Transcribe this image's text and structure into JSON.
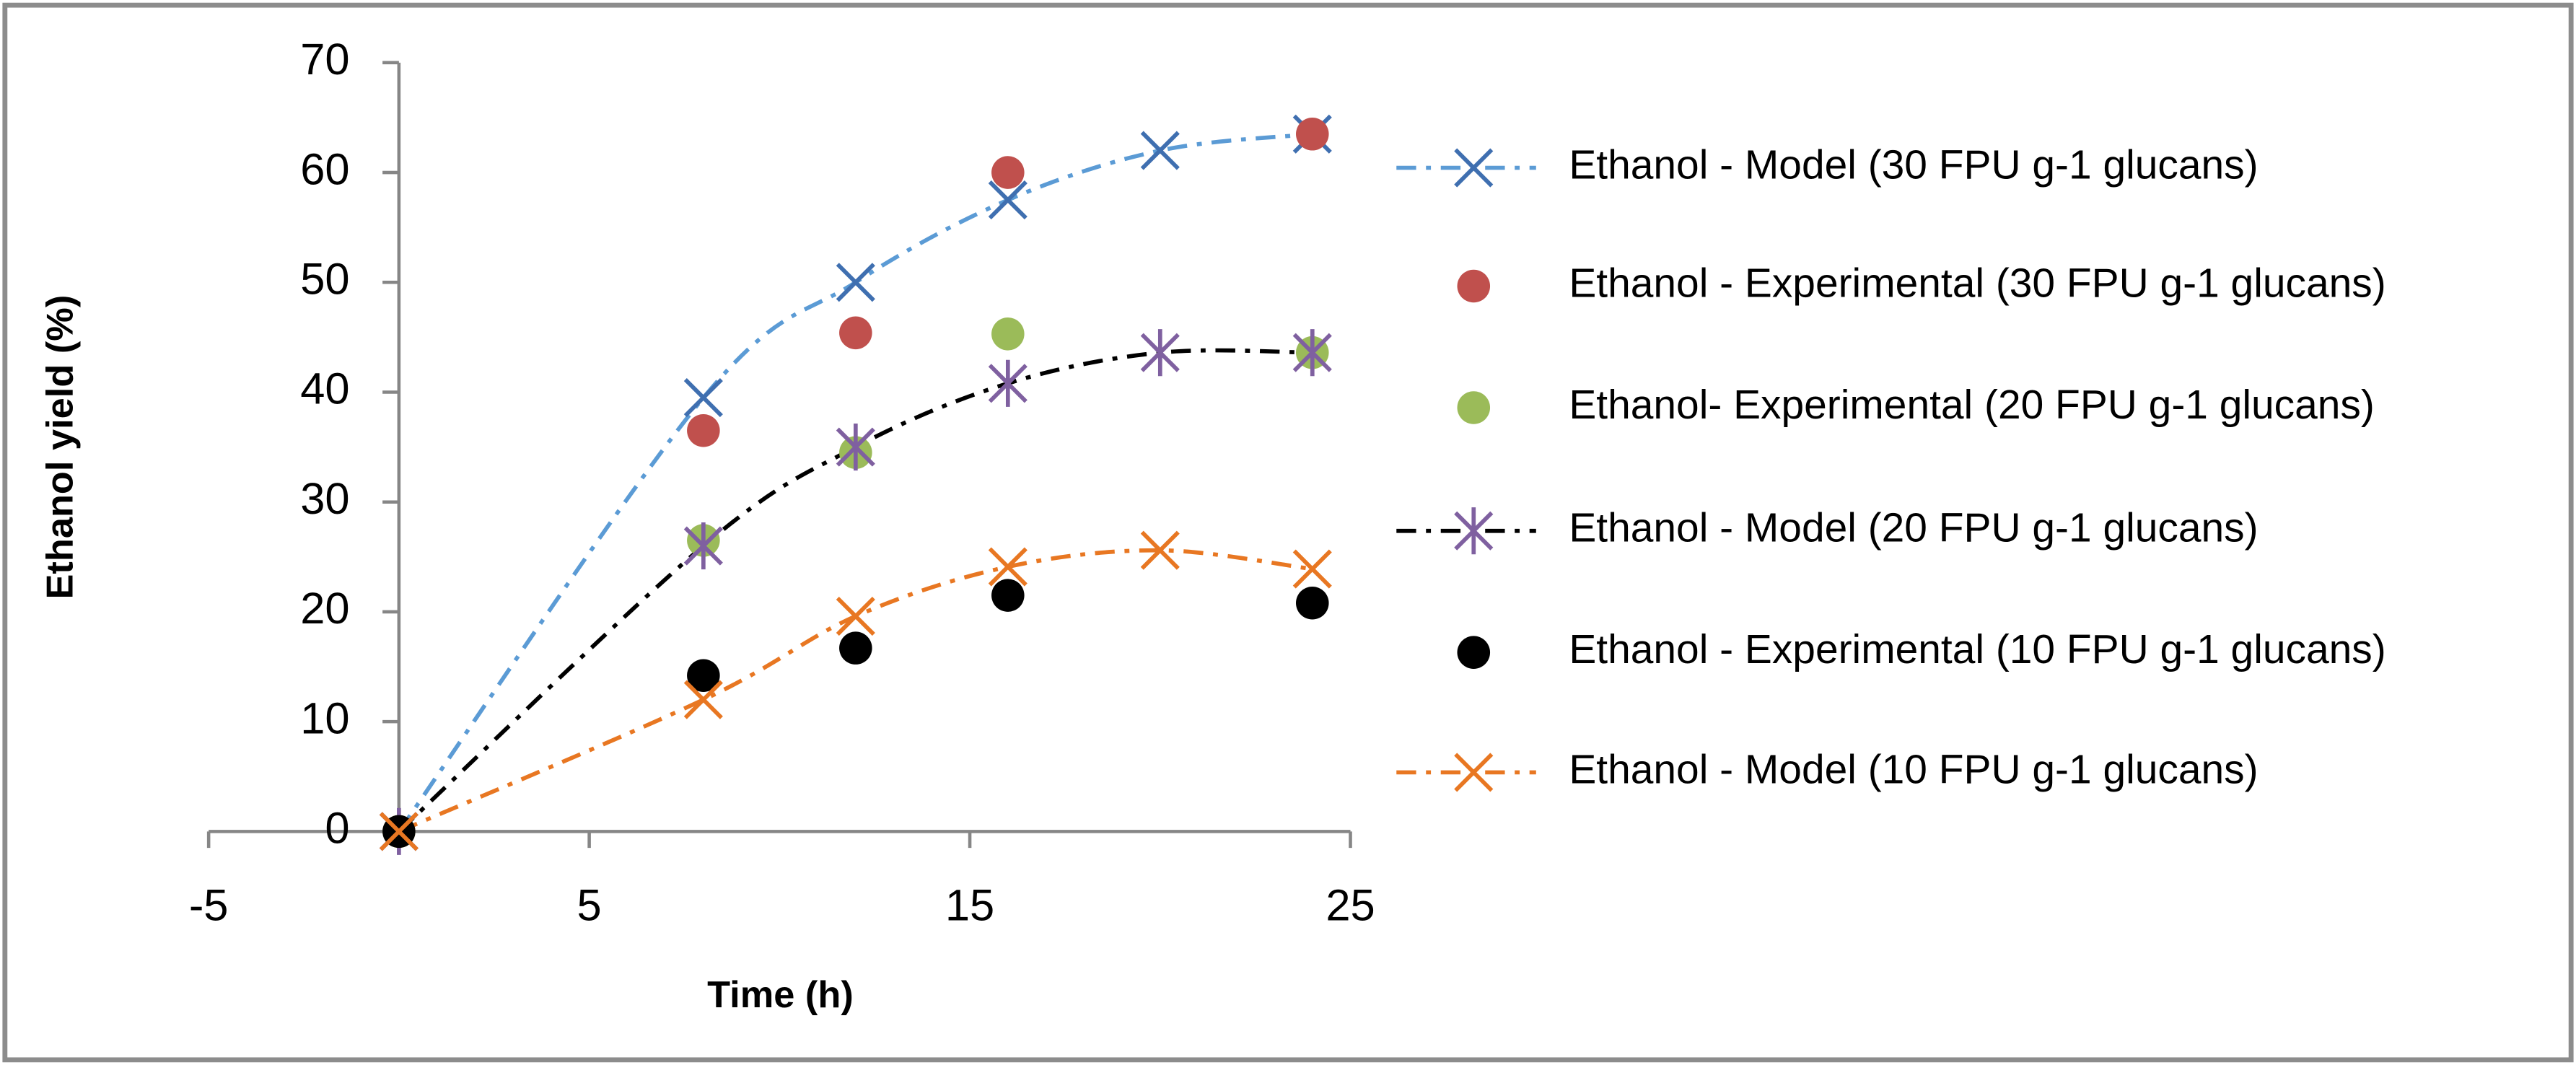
{
  "chart_data": {
    "type": "scatter-line",
    "x_label": "Time (h)",
    "y_label": "Ethanol yield (%)",
    "xlim": [
      -5,
      25
    ],
    "xticks": [
      -5,
      5,
      15,
      25
    ],
    "ylim": [
      0,
      70
    ],
    "yticks": [
      0,
      10,
      20,
      30,
      40,
      50,
      60,
      70
    ],
    "legend": "right",
    "series": [
      {
        "name": "Ethanol - Model (30 FPU g-1 glucans)",
        "color": "#3f6fb0",
        "line_color": "#5b9bd5",
        "marker": "x",
        "line": "dashdot",
        "x": [
          0,
          8,
          12,
          16,
          20,
          24
        ],
        "values": [
          0,
          39.5,
          50,
          57.5,
          62,
          63.5
        ]
      },
      {
        "name": "Ethanol - Experimental (30 FPU g-1 glucans)",
        "color": "#c0504d",
        "marker": "circle",
        "x": [
          0,
          8,
          12,
          16,
          24
        ],
        "values": [
          0,
          36.5,
          45.4,
          60,
          63.5
        ]
      },
      {
        "name": "Ethanol- Experimental (20 FPU g-1 glucans)",
        "color": "#9bbb59",
        "marker": "circle",
        "x": [
          0,
          8,
          12,
          16,
          24
        ],
        "values": [
          0,
          26.5,
          34.5,
          45.3,
          43.6
        ]
      },
      {
        "name": "Ethanol - Model (20 FPU g-1 glucans)",
        "color": "#7f60a0",
        "line_color": "#000000",
        "marker": "star",
        "line": "dashdot",
        "x": [
          0,
          8,
          12,
          16,
          20,
          24
        ],
        "values": [
          0,
          26,
          35,
          40.8,
          43.6,
          43.6
        ]
      },
      {
        "name": "Ethanol - Experimental (10 FPU g-1 glucans)",
        "color": "#000000",
        "marker": "circle",
        "x": [
          0,
          8,
          12,
          16,
          24
        ],
        "values": [
          0,
          14.2,
          16.7,
          21.5,
          20.8
        ]
      },
      {
        "name": "Ethanol - Model (10 FPU g-1 glucans)",
        "color": "#e87722",
        "line_color": "#e87722",
        "marker": "x",
        "line": "dashdot",
        "x": [
          0,
          8,
          12,
          16,
          20,
          24
        ],
        "values": [
          0,
          12,
          19.6,
          24.1,
          25.6,
          23.9
        ]
      }
    ]
  }
}
